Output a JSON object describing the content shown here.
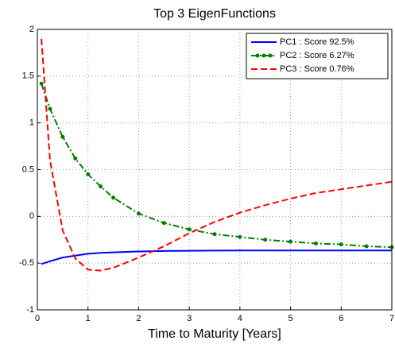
{
  "chart_data": {
    "type": "line",
    "title": "Top 3 EigenFunctions",
    "x_label": "Time to Maturity [Years]",
    "x": [
      0.08,
      0.25,
      0.5,
      0.75,
      1,
      1.25,
      1.5,
      2,
      2.5,
      3,
      3.5,
      4,
      4.5,
      5,
      5.5,
      6,
      6.5,
      7
    ],
    "series": [
      {
        "name": "PC1 : Score 92.5%",
        "color": "#0000ff",
        "line_style": "solid",
        "values": [
          -0.51,
          -0.48,
          -0.44,
          -0.42,
          -0.4,
          -0.39,
          -0.385,
          -0.375,
          -0.37,
          -0.368,
          -0.366,
          -0.365,
          -0.365,
          -0.365,
          -0.365,
          -0.365,
          -0.365,
          -0.365
        ]
      },
      {
        "name": "PC2 : Score 6.27%",
        "color": "#008000",
        "line_style": "dash-dot",
        "marker": "dot",
        "values": [
          1.42,
          1.15,
          0.85,
          0.62,
          0.45,
          0.32,
          0.2,
          0.03,
          -0.07,
          -0.14,
          -0.19,
          -0.22,
          -0.25,
          -0.27,
          -0.29,
          -0.3,
          -0.32,
          -0.33
        ]
      },
      {
        "name": "PC3 : Score 0.76%",
        "color": "#ff0000",
        "line_style": "dashed",
        "values": [
          1.9,
          0.6,
          -0.15,
          -0.45,
          -0.57,
          -0.58,
          -0.55,
          -0.44,
          -0.32,
          -0.18,
          -0.06,
          0.04,
          0.12,
          0.19,
          0.25,
          0.29,
          0.33,
          0.37
        ]
      }
    ],
    "xlim": [
      0,
      7
    ],
    "xticks": [
      0,
      1,
      2,
      3,
      4,
      5,
      6,
      7
    ],
    "ylim": [
      -1,
      2
    ],
    "yticks": [
      -1,
      -0.5,
      0,
      0.5,
      1,
      1.5,
      2
    ],
    "grid": true,
    "legend": "top-right"
  }
}
